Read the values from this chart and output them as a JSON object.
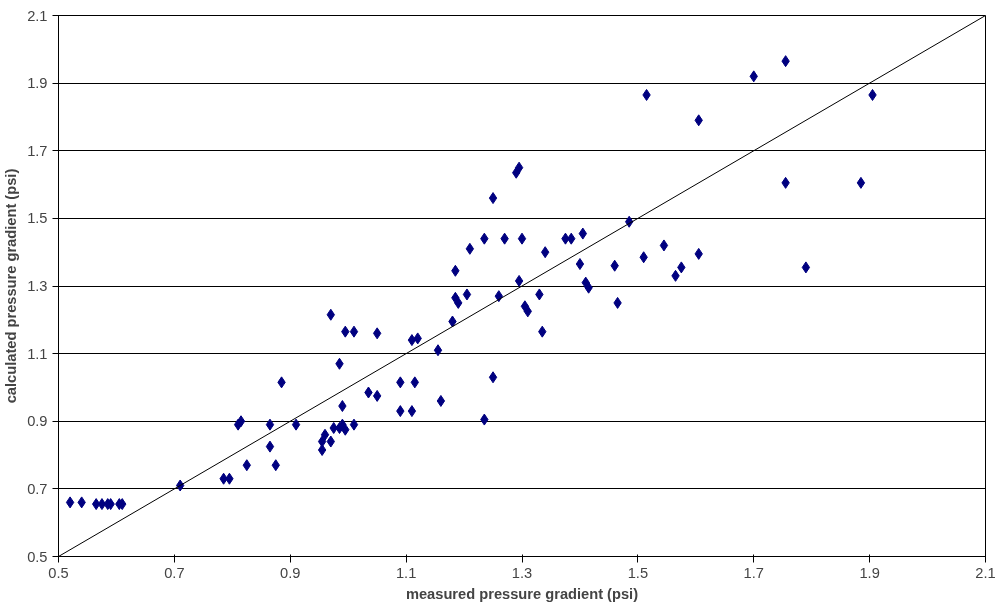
{
  "chart_data": {
    "type": "scatter",
    "xlabel": "measured pressure gradient (psi)",
    "ylabel": "calculated pressure gradient (psi)",
    "xlim": [
      0.5,
      2.1
    ],
    "ylim": [
      0.5,
      2.1
    ],
    "xticks": [
      0.5,
      0.7,
      0.9,
      1.1,
      1.3,
      1.5,
      1.7,
      1.9,
      2.1
    ],
    "yticks": [
      0.5,
      0.7,
      0.9,
      1.1,
      1.3,
      1.5,
      1.7,
      1.9,
      2.1
    ],
    "grid": "y",
    "marker": "diamond",
    "series": [
      {
        "color": "#000080",
        "x": [
          0.52,
          0.54,
          0.565,
          0.575,
          0.585,
          0.59,
          0.605,
          0.61,
          0.71,
          0.785,
          0.795,
          0.81,
          0.815,
          0.825,
          0.865,
          0.865,
          0.875,
          0.885,
          0.91,
          0.955,
          0.955,
          0.96,
          0.97,
          0.975,
          0.97,
          0.985,
          0.985,
          0.99,
          0.99,
          0.995,
          1.01,
          0.995,
          1.01,
          1.035,
          1.05,
          1.05,
          1.09,
          1.09,
          1.11,
          1.11,
          1.115,
          1.12,
          1.155,
          1.16,
          1.18,
          1.185,
          1.19,
          1.185,
          1.205,
          1.21,
          1.235,
          1.235,
          1.25,
          1.25,
          1.26,
          1.27,
          1.29,
          1.295,
          1.295,
          1.3,
          1.305,
          1.31,
          1.33,
          1.335,
          1.34,
          1.375,
          1.385,
          1.4,
          1.405,
          1.41,
          1.415,
          1.46,
          1.465,
          1.485,
          1.51,
          1.515,
          1.545,
          1.565,
          1.575,
          1.605,
          1.605,
          1.7,
          1.755,
          1.755,
          1.79,
          1.885,
          1.905
        ],
        "values": [
          0.66,
          0.66,
          0.655,
          0.655,
          0.655,
          0.655,
          0.655,
          0.655,
          0.71,
          0.73,
          0.73,
          0.89,
          0.9,
          0.77,
          0.89,
          0.825,
          0.77,
          1.015,
          0.89,
          0.815,
          0.84,
          0.86,
          0.84,
          0.88,
          1.215,
          1.07,
          0.88,
          0.945,
          0.89,
          0.875,
          0.89,
          1.165,
          1.165,
          0.985,
          0.975,
          1.16,
          1.015,
          0.93,
          0.93,
          1.14,
          1.015,
          1.145,
          1.11,
          0.96,
          1.195,
          1.265,
          1.25,
          1.345,
          1.275,
          1.41,
          1.44,
          0.905,
          1.03,
          1.56,
          1.27,
          1.44,
          1.635,
          1.65,
          1.315,
          1.44,
          1.24,
          1.225,
          1.275,
          1.165,
          1.4,
          1.44,
          1.44,
          1.365,
          1.455,
          1.31,
          1.295,
          1.36,
          1.25,
          1.49,
          1.385,
          1.865,
          1.42,
          1.33,
          1.355,
          1.79,
          1.395,
          1.92,
          1.965,
          1.605,
          1.355,
          1.605,
          1.865
        ]
      },
      {
        "type": "line",
        "color": "#000000",
        "x": [
          0.5,
          2.1
        ],
        "values": [
          0.5,
          2.1
        ],
        "marker": "none"
      }
    ]
  }
}
